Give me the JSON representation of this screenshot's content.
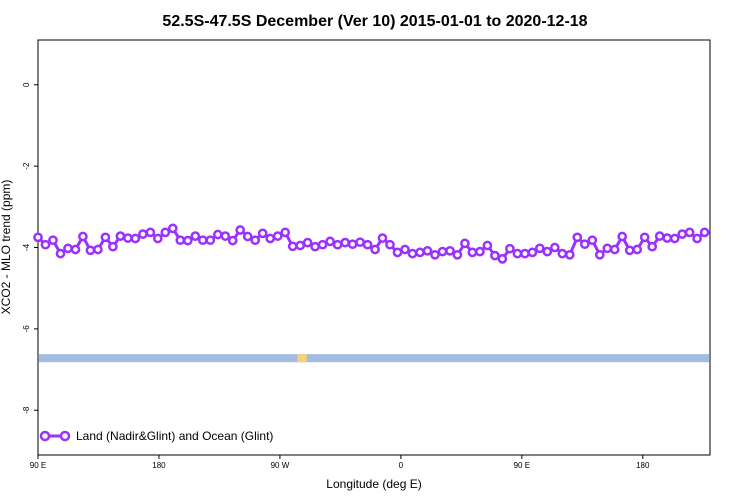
{
  "chart_data": {
    "type": "line",
    "title": "52.5S-47.5S December (Ver 10)   2015-01-01 to 2020-12-18",
    "xlabel": "Longitude (deg E)",
    "ylabel": "XCO2 - MLO trend (ppm)",
    "xlim": [
      90,
      590
    ],
    "ylim": [
      -9.1,
      1.1
    ],
    "x_ticks": [
      {
        "value": 90,
        "label": "90 E"
      },
      {
        "value": 180,
        "label": "180"
      },
      {
        "value": 270,
        "label": "90 W"
      },
      {
        "value": 360,
        "label": "0"
      },
      {
        "value": 450,
        "label": "90 E"
      },
      {
        "value": 540,
        "label": "180"
      }
    ],
    "y_ticks": [
      {
        "value": 0,
        "label": "0"
      },
      {
        "value": -2,
        "label": "-2"
      },
      {
        "value": -4,
        "label": "-4"
      },
      {
        "value": -6,
        "label": "-6"
      },
      {
        "value": -8,
        "label": "-8"
      }
    ],
    "series": [
      {
        "name": "Land (Nadir&Glint) and Ocean (Glint)",
        "color": "#9b30ff",
        "values": [
          -3.75,
          -3.93,
          -3.82,
          -4.15,
          -4.02,
          -4.05,
          -3.73,
          -4.07,
          -4.05,
          -3.75,
          -3.98,
          -3.72,
          -3.77,
          -3.78,
          -3.67,
          -3.63,
          -3.78,
          -3.63,
          -3.53,
          -3.82,
          -3.83,
          -3.72,
          -3.82,
          -3.82,
          -3.68,
          -3.72,
          -3.83,
          -3.57,
          -3.73,
          -3.82,
          -3.65,
          -3.78,
          -3.72,
          -3.63,
          -3.97,
          -3.95,
          -3.88,
          -3.98,
          -3.93,
          -3.85,
          -3.93,
          -3.88,
          -3.92,
          -3.87,
          -3.93,
          -4.05,
          -3.77,
          -3.93,
          -4.12,
          -4.05,
          -4.15,
          -4.12,
          -4.08,
          -4.18,
          -4.1,
          -4.08,
          -4.18,
          -3.9,
          -4.12,
          -4.1,
          -3.95,
          -4.2,
          -4.28,
          -4.03,
          -4.15,
          -4.15,
          -4.12,
          -4.02,
          -4.1,
          -4.0,
          -4.15,
          -4.18,
          -3.75,
          -3.92,
          -3.82,
          -4.18,
          -4.02,
          -4.05,
          -3.73,
          -4.07,
          -4.05,
          -3.75,
          -3.98,
          -3.72,
          -3.77,
          -3.78,
          -3.67,
          -3.63,
          -3.78,
          -3.63
        ]
      }
    ],
    "bands": [
      {
        "name": "ocean-band",
        "y_range": [
          -6.82,
          -6.62
        ],
        "color": "#a3bde0"
      },
      {
        "name": "land-patch",
        "x_range": [
          283,
          290
        ],
        "y_range": [
          -6.82,
          -6.62
        ],
        "color": "#f5d27a"
      }
    ],
    "grid": false,
    "legend_position": "bottom-left"
  }
}
